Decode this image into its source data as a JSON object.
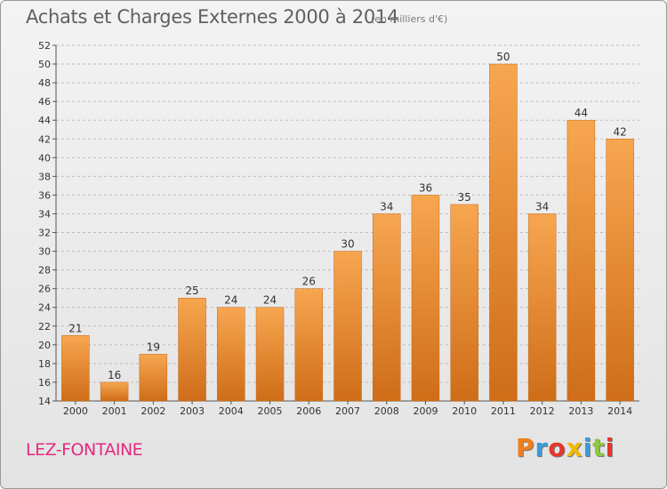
{
  "header": {
    "title": "Achats et Charges Externes 2000 à 2014",
    "subtitle": "(en milliers d'€)"
  },
  "footer": {
    "city": "LEZ-FONTAINE",
    "brand": "Proxiti",
    "brand_colors": [
      "#f07d1a",
      "#3a9bd8",
      "#e7352b",
      "#f5b800",
      "#3a9bd8",
      "#8dc63f",
      "#e7352b"
    ]
  },
  "colors": {
    "bar_light": "#f7a650",
    "bar_dark": "#cf6d18",
    "grid": "#bdbdbd",
    "title": "#5f5f5f",
    "city": "#e52a82"
  },
  "chart_data": {
    "type": "bar",
    "categories": [
      "2000",
      "2001",
      "2002",
      "2003",
      "2004",
      "2005",
      "2006",
      "2007",
      "2008",
      "2009",
      "2010",
      "2011",
      "2012",
      "2013",
      "2014"
    ],
    "values": [
      21,
      16,
      19,
      25,
      24,
      24,
      26,
      30,
      34,
      36,
      35,
      50,
      34,
      44,
      42
    ],
    "ylim": [
      14,
      52
    ],
    "yticks": [
      14,
      16,
      18,
      20,
      22,
      24,
      26,
      28,
      30,
      32,
      34,
      36,
      38,
      40,
      42,
      44,
      46,
      48,
      50,
      52
    ],
    "grid": true,
    "data_labels": true
  }
}
